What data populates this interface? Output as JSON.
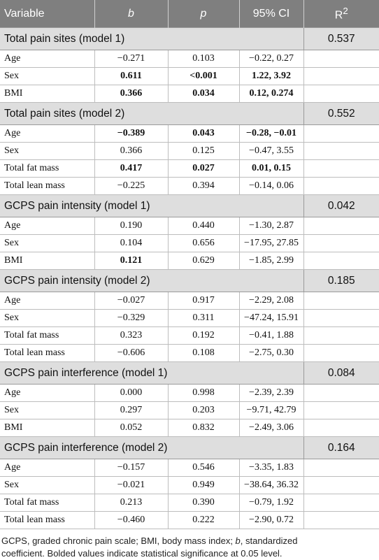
{
  "headers": [
    "Variable",
    "b",
    "p",
    "95% CI",
    "R2"
  ],
  "r2_label": "R",
  "r2_sup": "2",
  "sections": [
    {
      "title": "Total pain sites (model 1)",
      "r2": "0.537",
      "rows": [
        {
          "var": "Age",
          "b": "−0.271",
          "p": "0.103",
          "ci": "−0.22, 0.27",
          "bold": false
        },
        {
          "var": "Sex",
          "b": "0.611",
          "p": "<0.001",
          "ci": "1.22, 3.92",
          "bold": true
        },
        {
          "var": "BMI",
          "b": "0.366",
          "p": "0.034",
          "ci": "0.12, 0.274",
          "bold": true
        }
      ]
    },
    {
      "title": "Total pain sites (model 2)",
      "r2": "0.552",
      "rows": [
        {
          "var": "Age",
          "b": "−0.389",
          "p": "0.043",
          "ci": "−0.28, −0.01",
          "bold": true
        },
        {
          "var": "Sex",
          "b": "0.366",
          "p": "0.125",
          "ci": "−0.47, 3.55",
          "bold": false
        },
        {
          "var": "Total fat mass",
          "b": "0.417",
          "p": "0.027",
          "ci": "0.01, 0.15",
          "bold": true
        },
        {
          "var": "Total lean mass",
          "b": "−0.225",
          "p": "0.394",
          "ci": "−0.14, 0.06",
          "bold": false
        }
      ]
    },
    {
      "title": "GCPS pain intensity (model 1)",
      "r2": "0.042",
      "rows": [
        {
          "var": "Age",
          "b": "0.190",
          "p": "0.440",
          "ci": "−1.30, 2.87",
          "bold": false
        },
        {
          "var": "Sex",
          "b": "0.104",
          "p": "0.656",
          "ci": "−17.95, 27.85",
          "bold": false
        },
        {
          "var": "BMI",
          "b": "0.121",
          "p": "0.629",
          "ci": "−1.85, 2.99",
          "bold": false,
          "bold_b": true
        }
      ]
    },
    {
      "title": "GCPS pain intensity (model 2)",
      "r2": "0.185",
      "rows": [
        {
          "var": "Age",
          "b": "−0.027",
          "p": "0.917",
          "ci": "−2.29, 2.08",
          "bold": false
        },
        {
          "var": "Sex",
          "b": "−0.329",
          "p": "0.311",
          "ci": "−47.24, 15.91",
          "bold": false
        },
        {
          "var": "Total fat mass",
          "b": "0.323",
          "p": "0.192",
          "ci": "−0.41, 1.88",
          "bold": false
        },
        {
          "var": "Total lean mass",
          "b": "−0.606",
          "p": "0.108",
          "ci": "−2.75, 0.30",
          "bold": false
        }
      ]
    },
    {
      "title": "GCPS pain interference (model 1)",
      "r2": "0.084",
      "rows": [
        {
          "var": "Age",
          "b": "0.000",
          "p": "0.998",
          "ci": "−2.39, 2.39",
          "bold": false
        },
        {
          "var": "Sex",
          "b": "0.297",
          "p": "0.203",
          "ci": "−9.71, 42.79",
          "bold": false
        },
        {
          "var": "BMI",
          "b": "0.052",
          "p": "0.832",
          "ci": "−2.49, 3.06",
          "bold": false
        }
      ]
    },
    {
      "title": "GCPS pain interference (model 2)",
      "r2": "0.164",
      "rows": [
        {
          "var": "Age",
          "b": "−0.157",
          "p": "0.546",
          "ci": "−3.35, 1.83",
          "bold": false
        },
        {
          "var": "Sex",
          "b": "−0.021",
          "p": "0.949",
          "ci": "−38.64, 36.32",
          "bold": false
        },
        {
          "var": "Total fat mass",
          "b": "0.213",
          "p": "0.390",
          "ci": "−0.79, 1.92",
          "bold": false
        },
        {
          "var": "Total lean mass",
          "b": "−0.460",
          "p": "0.222",
          "ci": "−2.90, 0.72",
          "bold": false
        }
      ]
    }
  ],
  "footnote": {
    "line1_a": "GCPS, graded chronic pain scale; BMI, body mass index; ",
    "line1_b_italic": "b",
    "line1_c": ", standardized",
    "line2": "coefficient. Bolded values indicate statistical significance at 0.05 level."
  }
}
